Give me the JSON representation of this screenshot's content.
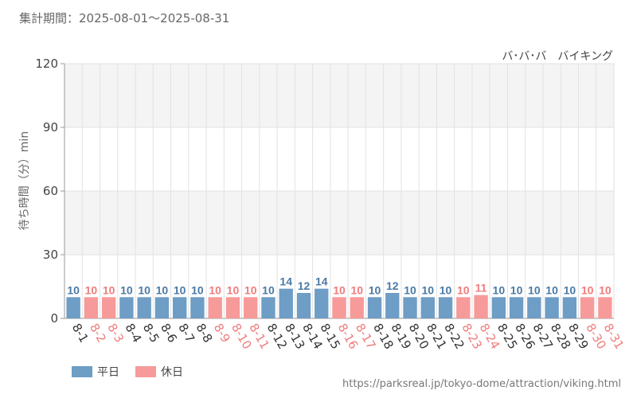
{
  "header": {
    "period_label": "集計期間：2025-08-01～2025-08-31"
  },
  "footer": {
    "url": "https://parksreal.jp/tokyo-dome/attraction/viking.html"
  },
  "colors": {
    "weekday": "#6e9dc6",
    "holiday": "#f79a9a",
    "weekday_text": "#4a7aa6",
    "holiday_text": "#f07c7c",
    "band": "#f4f4f4",
    "grid": "#e2e2e2"
  },
  "chart_data": {
    "type": "bar",
    "title": "バ･バ･バ　バイキング",
    "ylabel": "待ち時間（分）min",
    "xlabel": "",
    "ylim": [
      0,
      120
    ],
    "yticks": [
      0,
      30,
      60,
      90,
      120
    ],
    "grid": true,
    "legend_position": "bottom-left",
    "categories": [
      "8-1",
      "8-2",
      "8-3",
      "8-4",
      "8-5",
      "8-6",
      "8-7",
      "8-8",
      "8-9",
      "8-10",
      "8-11",
      "8-12",
      "8-13",
      "8-14",
      "8-15",
      "8-16",
      "8-17",
      "8-18",
      "8-19",
      "8-20",
      "8-21",
      "8-22",
      "8-23",
      "8-24",
      "8-25",
      "8-26",
      "8-27",
      "8-28",
      "8-29",
      "8-30",
      "8-31"
    ],
    "values": [
      10,
      10,
      10,
      10,
      10,
      10,
      10,
      10,
      10,
      10,
      10,
      10,
      14,
      12,
      14,
      10,
      10,
      10,
      12,
      10,
      10,
      10,
      10,
      11,
      10,
      10,
      10,
      10,
      10,
      10,
      10
    ],
    "day_type": [
      "weekday",
      "holiday",
      "holiday",
      "weekday",
      "weekday",
      "weekday",
      "weekday",
      "weekday",
      "holiday",
      "holiday",
      "holiday",
      "weekday",
      "weekday",
      "weekday",
      "weekday",
      "holiday",
      "holiday",
      "weekday",
      "weekday",
      "weekday",
      "weekday",
      "weekday",
      "holiday",
      "holiday",
      "weekday",
      "weekday",
      "weekday",
      "weekday",
      "weekday",
      "holiday",
      "holiday"
    ],
    "series": [
      {
        "key": "weekday",
        "name": "平日"
      },
      {
        "key": "holiday",
        "name": "休日"
      }
    ]
  }
}
